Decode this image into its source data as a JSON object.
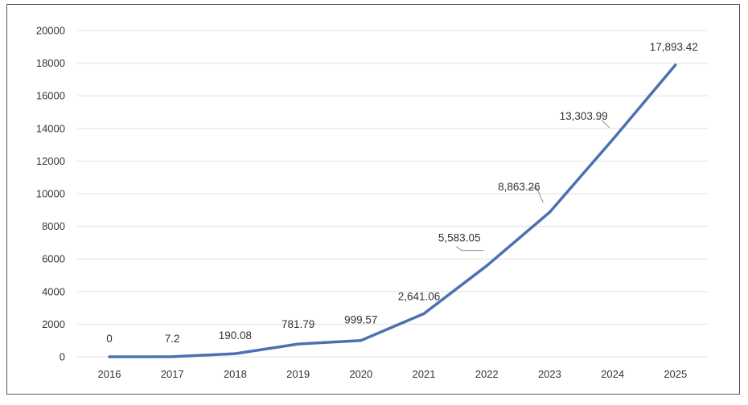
{
  "chart_data": {
    "type": "line",
    "categories": [
      "2016",
      "2017",
      "2018",
      "2019",
      "2020",
      "2021",
      "2022",
      "2023",
      "2024",
      "2025"
    ],
    "values": [
      0,
      7.2,
      190.08,
      781.79,
      999.57,
      2641.06,
      5583.05,
      8863.26,
      13303.99,
      17893.42
    ],
    "data_labels": [
      "0",
      "7.2",
      "190.08",
      "781.79",
      "999.57",
      "2,641.06",
      "5,583.05",
      "8,863.26",
      "13,303.99",
      "17,893.42"
    ],
    "y_ticks": [
      "0",
      "2000",
      "4000",
      "6000",
      "8000",
      "10000",
      "12000",
      "14000",
      "16000",
      "18000",
      "20000"
    ],
    "title": "",
    "xlabel": "",
    "ylabel": "",
    "ylim": [
      0,
      20000
    ],
    "grid": true,
    "legend": "none",
    "line_color": "#4a72b0",
    "grid_color": "#e0e0e0"
  }
}
